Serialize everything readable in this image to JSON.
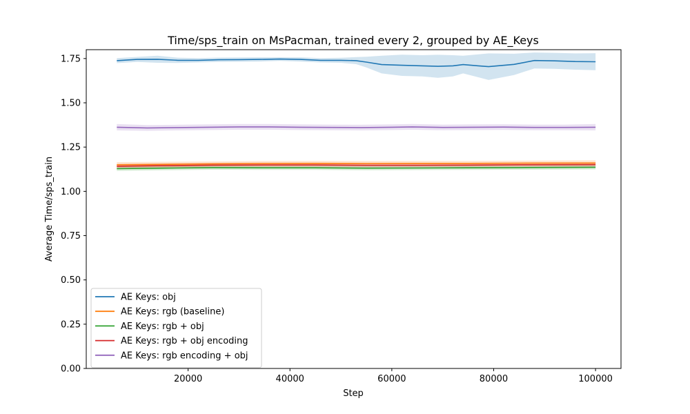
{
  "chart_data": {
    "type": "line",
    "title": "Time/sps_train on MsPacman, trained every 2, grouped by AE_Keys",
    "xlabel": "Step",
    "ylabel": "Average Time/sps_train",
    "xlim": [
      0,
      105000
    ],
    "ylim": [
      0.0,
      1.8
    ],
    "x_ticks": [
      20000,
      40000,
      60000,
      80000,
      100000
    ],
    "y_ticks": [
      0.0,
      0.25,
      0.5,
      0.75,
      1.0,
      1.25,
      1.5,
      1.75
    ],
    "legend_position": "lower-left",
    "grid": false,
    "series": [
      {
        "name": "AE Keys: obj",
        "color": "#1f77b4",
        "x": [
          6000,
          10000,
          14000,
          18000,
          22000,
          26000,
          30000,
          34000,
          38000,
          42000,
          46000,
          50000,
          53000,
          55000,
          58000,
          62000,
          66000,
          69000,
          72000,
          74000,
          77000,
          79000,
          84000,
          88000,
          92000,
          96000,
          100000
        ],
        "y": [
          1.738,
          1.745,
          1.746,
          1.74,
          1.74,
          1.743,
          1.744,
          1.745,
          1.747,
          1.745,
          1.74,
          1.74,
          1.738,
          1.73,
          1.716,
          1.712,
          1.709,
          1.706,
          1.709,
          1.716,
          1.709,
          1.704,
          1.717,
          1.739,
          1.737,
          1.733,
          1.732
        ],
        "band": [
          0.014,
          0.014,
          0.02,
          0.015,
          0.012,
          0.012,
          0.012,
          0.012,
          0.01,
          0.012,
          0.012,
          0.014,
          0.02,
          0.03,
          0.05,
          0.06,
          0.06,
          0.065,
          0.06,
          0.05,
          0.065,
          0.075,
          0.06,
          0.045,
          0.045,
          0.046,
          0.048
        ]
      },
      {
        "name": "AE Keys: rgb (baseline)",
        "color": "#ff7f0e",
        "x": [
          6000,
          15000,
          25000,
          35000,
          45000,
          55000,
          65000,
          75000,
          85000,
          100000
        ],
        "y": [
          1.15,
          1.152,
          1.155,
          1.157,
          1.158,
          1.157,
          1.158,
          1.158,
          1.159,
          1.16
        ],
        "band": [
          0.015,
          0.015,
          0.014,
          0.014,
          0.014,
          0.014,
          0.014,
          0.014,
          0.014,
          0.015
        ]
      },
      {
        "name": "AE Keys: rgb + obj",
        "color": "#2ca02c",
        "x": [
          6000,
          15000,
          25000,
          35000,
          45000,
          55000,
          65000,
          75000,
          85000,
          100000
        ],
        "y": [
          1.128,
          1.131,
          1.134,
          1.133,
          1.133,
          1.131,
          1.132,
          1.133,
          1.134,
          1.136
        ],
        "band": [
          0.012,
          0.012,
          0.012,
          0.012,
          0.012,
          0.012,
          0.012,
          0.012,
          0.012,
          0.012
        ]
      },
      {
        "name": "AE Keys: rgb + obj encoding",
        "color": "#d62728",
        "x": [
          6000,
          15000,
          25000,
          35000,
          45000,
          55000,
          65000,
          75000,
          85000,
          100000
        ],
        "y": [
          1.142,
          1.145,
          1.148,
          1.149,
          1.149,
          1.147,
          1.147,
          1.148,
          1.15,
          1.151
        ],
        "band": [
          0.013,
          0.013,
          0.013,
          0.013,
          0.013,
          0.013,
          0.013,
          0.013,
          0.013,
          0.013
        ]
      },
      {
        "name": "AE Keys: rgb encoding + obj",
        "color": "#9467bd",
        "x": [
          6000,
          12000,
          18000,
          24000,
          30000,
          36000,
          42000,
          48000,
          54000,
          60000,
          64000,
          70000,
          76000,
          82000,
          88000,
          94000,
          100000
        ],
        "y": [
          1.362,
          1.358,
          1.36,
          1.362,
          1.364,
          1.364,
          1.362,
          1.361,
          1.36,
          1.362,
          1.364,
          1.361,
          1.362,
          1.363,
          1.361,
          1.361,
          1.362
        ],
        "band": [
          0.018,
          0.016,
          0.016,
          0.016,
          0.016,
          0.016,
          0.016,
          0.016,
          0.016,
          0.016,
          0.016,
          0.016,
          0.016,
          0.016,
          0.016,
          0.016,
          0.018
        ]
      }
    ]
  }
}
